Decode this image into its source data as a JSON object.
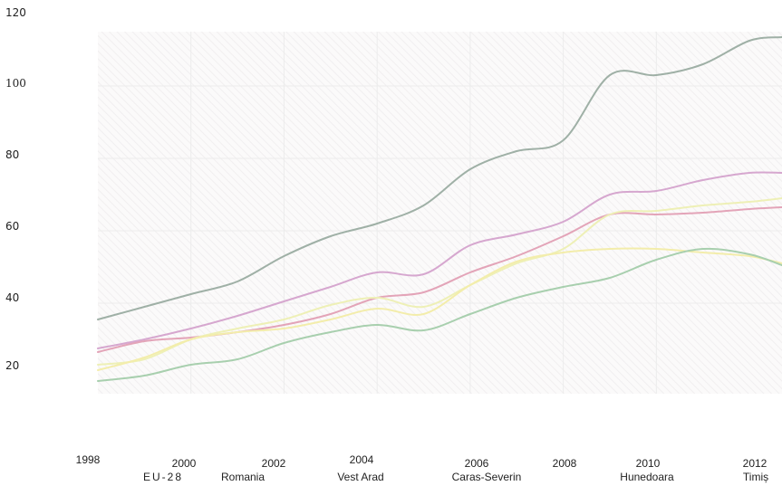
{
  "chart_data": {
    "type": "line",
    "title": "",
    "xlabel": "",
    "ylabel": "",
    "xlim": [
      1998,
      2012.7
    ],
    "ylim": [
      15,
      115
    ],
    "y_ticks": [
      {
        "value": 20,
        "label": "20"
      },
      {
        "value": 40,
        "label": "40"
      },
      {
        "value": 60,
        "label": "60"
      },
      {
        "value": 80,
        "label": "80"
      },
      {
        "value": 100,
        "label": "100"
      },
      {
        "value": 120,
        "label": "120"
      }
    ],
    "x_ticks": [
      {
        "value": 1998,
        "label": "1998"
      },
      {
        "value": 2000,
        "label": "2000"
      },
      {
        "value": 2002,
        "label": "2002"
      },
      {
        "value": 2004,
        "label": "2004"
      },
      {
        "value": 2006,
        "label": "2006"
      },
      {
        "value": 2008,
        "label": "2008"
      },
      {
        "value": 2010,
        "label": "2010"
      },
      {
        "value": 2012,
        "label": "2012"
      }
    ],
    "x": [
      1998,
      1999,
      2000,
      2001,
      2002,
      2003,
      2004,
      2005,
      2006,
      2007,
      2008,
      2009,
      2010,
      2011,
      2012,
      2012.7
    ],
    "legend_position": "bottom",
    "grid": true,
    "series": [
      {
        "name": "EU-28",
        "color": "#9fb0a6",
        "values": [
          35.5,
          39,
          42.5,
          46,
          53,
          58.5,
          62,
          67,
          77,
          82,
          85,
          103,
          103,
          106,
          112.5,
          113.5
        ]
      },
      {
        "name": "Romania",
        "color": "#d6a7cf",
        "values": [
          27.5,
          30,
          33,
          36.5,
          40.5,
          44.5,
          48.5,
          48,
          56,
          59,
          62.5,
          70,
          71,
          74,
          76,
          76
        ]
      },
      {
        "name": "Vest Arad",
        "color": "#e3a4b8",
        "values": [
          26.5,
          29.5,
          30.5,
          32,
          34,
          37,
          41.5,
          43,
          48.5,
          53,
          58.5,
          64.5,
          64.5,
          65,
          66,
          66.5
        ]
      },
      {
        "name": "Caras-Severin",
        "color": "#eef0b6",
        "values": [
          23,
          24.5,
          30,
          33,
          35.5,
          39.5,
          41.5,
          39,
          45,
          51,
          55,
          64.5,
          65.5,
          67,
          68,
          69
        ]
      },
      {
        "name": "Hunedoara",
        "color": "#f3edab",
        "values": [
          21.5,
          25,
          30,
          32,
          33,
          35.5,
          38.5,
          37,
          45,
          51.5,
          54,
          55,
          55,
          54,
          53,
          51
        ]
      },
      {
        "name": "Timiș",
        "color": "#a8cfae",
        "values": [
          18.5,
          20,
          23,
          24.5,
          29,
          32,
          34,
          32.5,
          37,
          41.5,
          44.5,
          47,
          52,
          55,
          53.5,
          50.5
        ]
      }
    ]
  }
}
